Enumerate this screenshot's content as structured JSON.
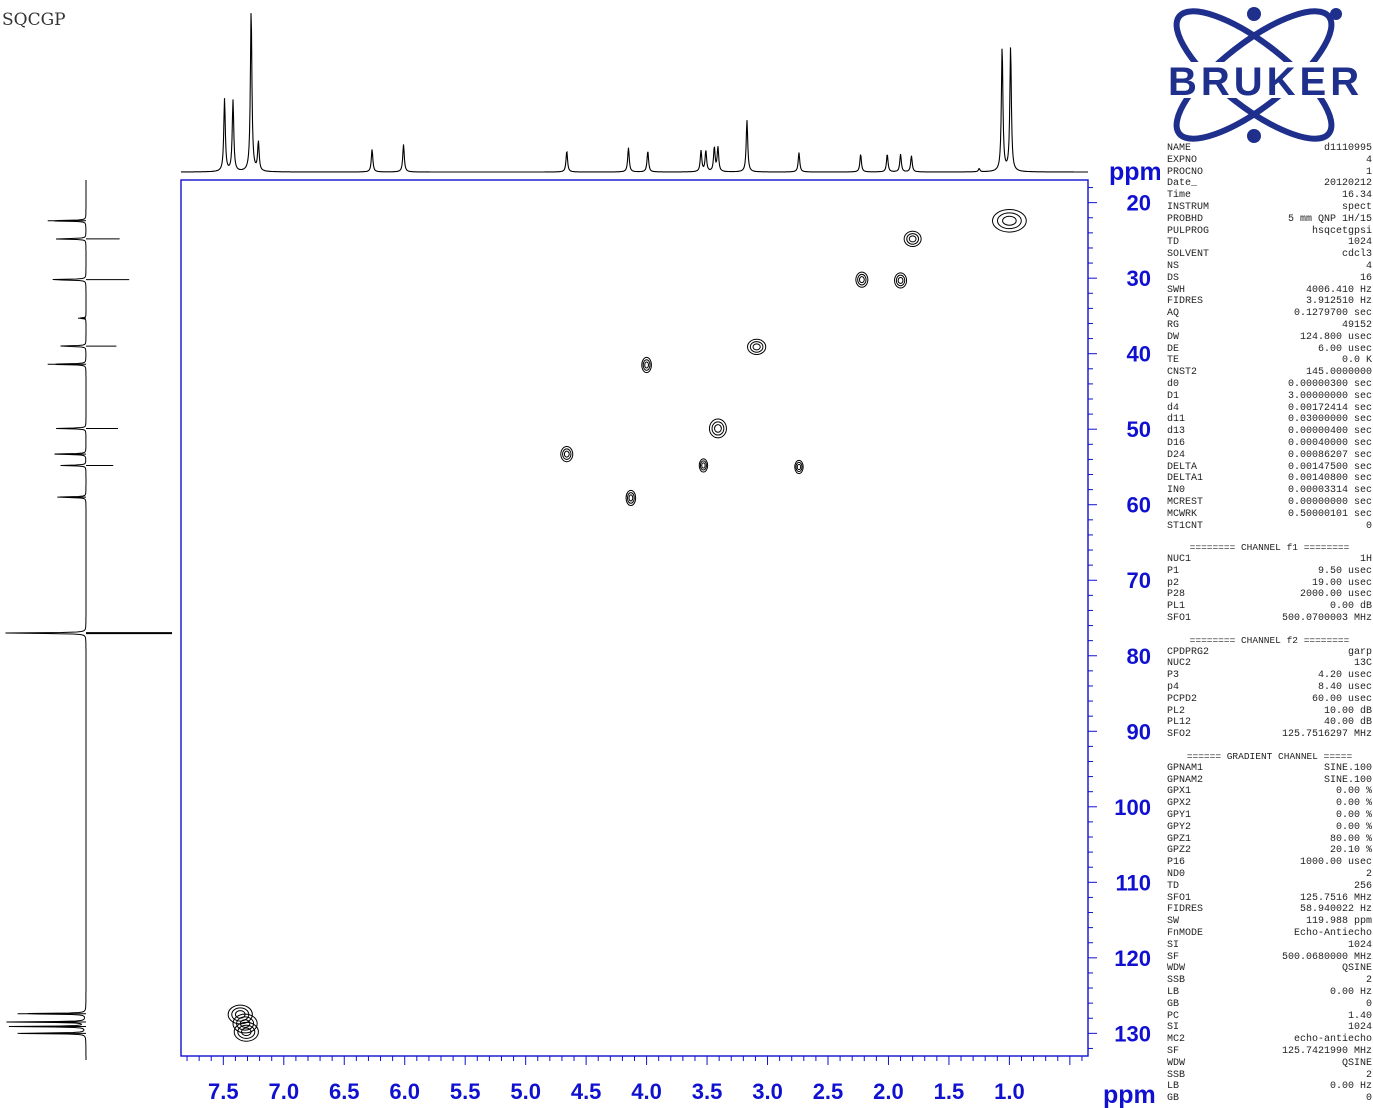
{
  "experiment_label": "SQCGP",
  "logo": {
    "text": "BRUKER",
    "color": "#1f2f8c",
    "icon": "atom-orbits-logo"
  },
  "colors": {
    "axis": "#1010d0",
    "trace": "#000000",
    "contour": "#000000"
  },
  "chart_data": {
    "type": "2d-nmr-hsqc",
    "x_axis": {
      "label": "ppm",
      "range": [
        7.85,
        0.35
      ],
      "reversed": true,
      "tick_labels": [
        "7.5",
        "7.0",
        "6.5",
        "6.0",
        "5.5",
        "5.0",
        "4.5",
        "4.0",
        "3.5",
        "3.0",
        "2.5",
        "2.0",
        "1.5",
        "1.0"
      ],
      "ticks": [
        7.5,
        7.0,
        6.5,
        6.0,
        5.5,
        5.0,
        4.5,
        4.0,
        3.5,
        3.0,
        2.5,
        2.0,
        1.5,
        1.0
      ]
    },
    "y_axis": {
      "label": "ppm",
      "range": [
        17,
        133
      ],
      "tick_labels": [
        "20",
        "30",
        "40",
        "50",
        "60",
        "70",
        "80",
        "90",
        "100",
        "110",
        "120",
        "130"
      ],
      "ticks": [
        20,
        30,
        40,
        50,
        60,
        70,
        80,
        90,
        100,
        110,
        120,
        130
      ]
    },
    "top_projection_peaks": [
      {
        "x": 7.49,
        "h": 0.45
      },
      {
        "x": 7.42,
        "h": 0.44
      },
      {
        "x": 7.27,
        "h": 1.0
      },
      {
        "x": 7.21,
        "h": 0.18
      },
      {
        "x": 6.27,
        "h": 0.14
      },
      {
        "x": 6.01,
        "h": 0.17
      },
      {
        "x": 4.66,
        "h": 0.13
      },
      {
        "x": 4.15,
        "h": 0.15
      },
      {
        "x": 3.99,
        "h": 0.13
      },
      {
        "x": 3.55,
        "h": 0.13
      },
      {
        "x": 3.51,
        "h": 0.13
      },
      {
        "x": 3.44,
        "h": 0.15
      },
      {
        "x": 3.41,
        "h": 0.15
      },
      {
        "x": 3.17,
        "h": 0.32
      },
      {
        "x": 2.74,
        "h": 0.12
      },
      {
        "x": 2.23,
        "h": 0.11
      },
      {
        "x": 2.01,
        "h": 0.11
      },
      {
        "x": 1.9,
        "h": 0.11
      },
      {
        "x": 1.81,
        "h": 0.1
      },
      {
        "x": 1.06,
        "h": 0.77
      },
      {
        "x": 0.99,
        "h": 0.77
      },
      {
        "x": 1.25,
        "h": 0.02
      }
    ],
    "left_projection_peaks": [
      {
        "y": 22.4,
        "h": 0.28
      },
      {
        "y": 24.8,
        "h": 0.21
      },
      {
        "y": 30.2,
        "h": 0.27
      },
      {
        "y": 35.3,
        "h": 0.05
      },
      {
        "y": 39.0,
        "h": 0.19
      },
      {
        "y": 41.4,
        "h": 0.28
      },
      {
        "y": 49.9,
        "h": 0.2
      },
      {
        "y": 53.3,
        "h": 0.23
      },
      {
        "y": 54.8,
        "h": 0.17
      },
      {
        "y": 59.0,
        "h": 0.21
      },
      {
        "y": 77.0,
        "h": 0.57
      },
      {
        "y": 127.4,
        "h": 0.5
      },
      {
        "y": 128.5,
        "h": 0.52
      },
      {
        "y": 129.1,
        "h": 0.51
      },
      {
        "y": 130.0,
        "h": 0.5
      }
    ],
    "cross_peaks": [
      {
        "x": 1.0,
        "y": 22.4,
        "w": 0.28,
        "h": 0.6
      },
      {
        "x": 1.8,
        "y": 24.8,
        "w": 0.14,
        "h": 0.4
      },
      {
        "x": 2.22,
        "y": 30.2,
        "w": 0.1,
        "h": 0.4
      },
      {
        "x": 1.9,
        "y": 30.3,
        "w": 0.1,
        "h": 0.4
      },
      {
        "x": 3.09,
        "y": 39.1,
        "w": 0.15,
        "h": 0.4
      },
      {
        "x": 4.0,
        "y": 41.5,
        "w": 0.08,
        "h": 0.4
      },
      {
        "x": 3.41,
        "y": 49.9,
        "w": 0.14,
        "h": 0.5
      },
      {
        "x": 4.66,
        "y": 53.3,
        "w": 0.1,
        "h": 0.4
      },
      {
        "x": 3.53,
        "y": 54.8,
        "w": 0.07,
        "h": 0.35
      },
      {
        "x": 2.74,
        "y": 55.0,
        "w": 0.07,
        "h": 0.35
      },
      {
        "x": 4.13,
        "y": 59.1,
        "w": 0.08,
        "h": 0.4
      },
      {
        "x": 7.36,
        "y": 127.5,
        "w": 0.2,
        "h": 0.5
      },
      {
        "x": 7.32,
        "y": 128.7,
        "w": 0.2,
        "h": 0.5
      },
      {
        "x": 7.31,
        "y": 129.8,
        "w": 0.2,
        "h": 0.5
      }
    ]
  },
  "parameters": [
    {
      "name": "NAME",
      "value": "d1110995"
    },
    {
      "name": "EXPNO",
      "value": "4"
    },
    {
      "name": "PROCNO",
      "value": "1"
    },
    {
      "name": "Date_",
      "value": "20120212"
    },
    {
      "name": "Time",
      "value": "16.34"
    },
    {
      "name": "INSTRUM",
      "value": "spect"
    },
    {
      "name": "PROBHD",
      "value": "5 mm QNP 1H/15"
    },
    {
      "name": "PULPROG",
      "value": "hsqcetgpsi"
    },
    {
      "name": "TD",
      "value": "1024"
    },
    {
      "name": "SOLVENT",
      "value": "cdcl3"
    },
    {
      "name": "NS",
      "value": "4"
    },
    {
      "name": "DS",
      "value": "16"
    },
    {
      "name": "SWH",
      "value": "4006.410 Hz"
    },
    {
      "name": "FIDRES",
      "value": "3.912510 Hz"
    },
    {
      "name": "AQ",
      "value": "0.1279700 sec"
    },
    {
      "name": "RG",
      "value": "49152"
    },
    {
      "name": "DW",
      "value": "124.800 usec"
    },
    {
      "name": "DE",
      "value": "6.00 usec"
    },
    {
      "name": "TE",
      "value": "0.0 K"
    },
    {
      "name": "CNST2",
      "value": "145.0000000"
    },
    {
      "name": "d0",
      "value": "0.00000300 sec"
    },
    {
      "name": "D1",
      "value": "3.00000000 sec"
    },
    {
      "name": "d4",
      "value": "0.00172414 sec"
    },
    {
      "name": "d11",
      "value": "0.03000000 sec"
    },
    {
      "name": "d13",
      "value": "0.00000400 sec"
    },
    {
      "name": "D16",
      "value": "0.00040000 sec"
    },
    {
      "name": "D24",
      "value": "0.00086207 sec"
    },
    {
      "name": "DELTA",
      "value": "0.00147500 sec"
    },
    {
      "name": "DELTA1",
      "value": "0.00140800 sec"
    },
    {
      "name": "IN0",
      "value": "0.00003314 sec"
    },
    {
      "name": "MCREST",
      "value": "0.00000000 sec"
    },
    {
      "name": "MCWRK",
      "value": "0.50000101 sec"
    },
    {
      "name": "ST1CNT",
      "value": "0"
    },
    {
      "sep": "======== CHANNEL f1 ========"
    },
    {
      "name": "NUC1",
      "value": "1H"
    },
    {
      "name": "P1",
      "value": "9.50 usec"
    },
    {
      "name": "p2",
      "value": "19.00 usec"
    },
    {
      "name": "P28",
      "value": "2000.00 usec"
    },
    {
      "name": "PL1",
      "value": "0.00 dB"
    },
    {
      "name": "SFO1",
      "value": "500.0700003 MHz"
    },
    {
      "sep": "======== CHANNEL f2 ========"
    },
    {
      "name": "CPDPRG2",
      "value": "garp"
    },
    {
      "name": "NUC2",
      "value": "13C"
    },
    {
      "name": "P3",
      "value": "4.20 usec"
    },
    {
      "name": "p4",
      "value": "8.40 usec"
    },
    {
      "name": "PCPD2",
      "value": "60.00 usec"
    },
    {
      "name": "PL2",
      "value": "10.00 dB"
    },
    {
      "name": "PL12",
      "value": "40.00 dB"
    },
    {
      "name": "SFO2",
      "value": "125.7516297 MHz"
    },
    {
      "sep": "====== GRADIENT CHANNEL ====="
    },
    {
      "name": "GPNAM1",
      "value": "SINE.100"
    },
    {
      "name": "GPNAM2",
      "value": "SINE.100"
    },
    {
      "name": "GPX1",
      "value": "0.00 %"
    },
    {
      "name": "GPX2",
      "value": "0.00 %"
    },
    {
      "name": "GPY1",
      "value": "0.00 %"
    },
    {
      "name": "GPY2",
      "value": "0.00 %"
    },
    {
      "name": "GPZ1",
      "value": "80.00 %"
    },
    {
      "name": "GPZ2",
      "value": "20.10 %"
    },
    {
      "name": "P16",
      "value": "1000.00 usec"
    },
    {
      "name": "ND0",
      "value": "2"
    },
    {
      "name": "TD",
      "value": "256"
    },
    {
      "name": "SFO1",
      "value": "125.7516 MHz"
    },
    {
      "name": "FIDRES",
      "value": "58.940022 Hz"
    },
    {
      "name": "SW",
      "value": "119.988 ppm"
    },
    {
      "name": "FnMODE",
      "value": "Echo-Antiecho"
    },
    {
      "name": "SI",
      "value": "1024"
    },
    {
      "name": "SF",
      "value": "500.0680000 MHz"
    },
    {
      "name": "WDW",
      "value": "QSINE"
    },
    {
      "name": "SSB",
      "value": "2"
    },
    {
      "name": "LB",
      "value": "0.00 Hz"
    },
    {
      "name": "GB",
      "value": "0"
    },
    {
      "name": "PC",
      "value": "1.40"
    },
    {
      "name": "SI",
      "value": "1024"
    },
    {
      "name": "MC2",
      "value": "echo-antiecho"
    },
    {
      "name": "SF",
      "value": "125.7421990 MHz"
    },
    {
      "name": "WDW",
      "value": "QSINE"
    },
    {
      "name": "SSB",
      "value": "2"
    },
    {
      "name": "LB",
      "value": "0.00 Hz"
    },
    {
      "name": "GB",
      "value": "0"
    }
  ]
}
